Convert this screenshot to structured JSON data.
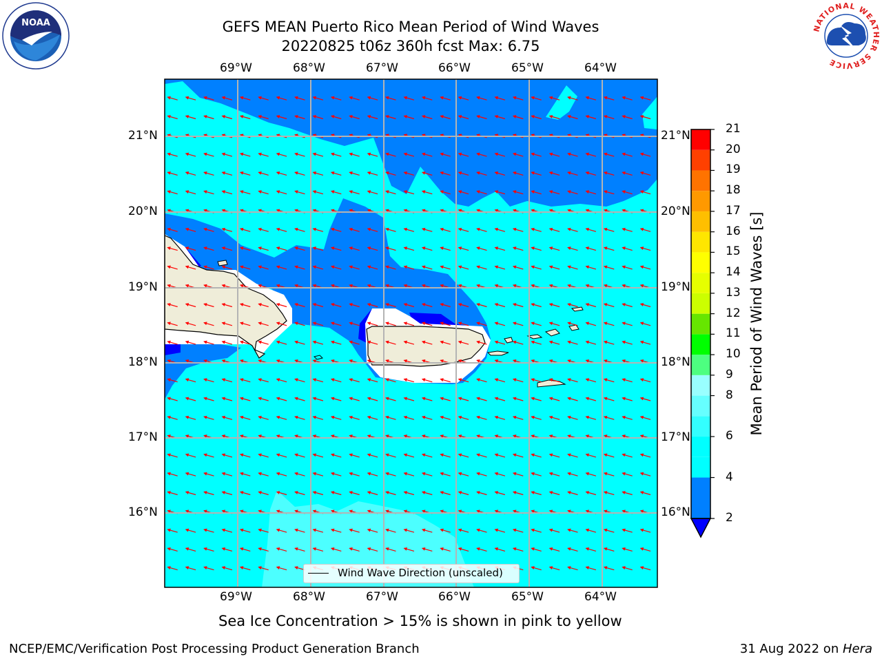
{
  "header": {
    "title_line1": "GEFS MEAN Puerto Rico Mean Period of Wind Waves",
    "title_line2": "20220825 t06z 360h fcst   Max: 6.75"
  },
  "logos": {
    "noaa": {
      "text": "NOAA",
      "ring_text": "NATIONAL OCEANIC AND ATMOSPHERIC ADMINISTRATION · U.S. DEPARTMENT OF COMMERCE"
    },
    "nws": {
      "ring_text": "NATIONAL WEATHER SERVICE"
    }
  },
  "map": {
    "lon_ticks": [
      "69°W",
      "68°W",
      "67°W",
      "66°W",
      "65°W",
      "64°W"
    ],
    "lat_ticks": [
      "21°N",
      "20°N",
      "19°N",
      "18°N",
      "17°N",
      "16°N"
    ],
    "extent": {
      "lon_min": -70.0,
      "lon_max": -63.25,
      "lat_min": 15.0,
      "lat_max": 21.75
    },
    "grid": true,
    "legend_label": "Wind Wave Direction (unscaled)",
    "arrow_color": "#ff0000",
    "land_color": "#efedd9",
    "colors": {
      "band_2_4": "#0080ff",
      "band_4_6": "#00ffff",
      "band_6_8": "#4cffff",
      "below_2": "#0000ff"
    }
  },
  "colorbar": {
    "label": "Mean Period of Wind Waves [s]",
    "ticks": [
      "21",
      "20",
      "19",
      "18",
      "17",
      "16",
      "15",
      "14",
      "13",
      "12",
      "11",
      "10",
      "9",
      "8",
      "6",
      "4",
      "2"
    ],
    "levels": [
      {
        "from": 2,
        "to": 4,
        "color": "#0080ff"
      },
      {
        "from": 4,
        "to": 5,
        "color": "#00ffff"
      },
      {
        "from": 5,
        "to": 6,
        "color": "#00ffff"
      },
      {
        "from": 6,
        "to": 7,
        "color": "#33ffff"
      },
      {
        "from": 7,
        "to": 8,
        "color": "#66ffff"
      },
      {
        "from": 8,
        "to": 9,
        "color": "#99ffff"
      },
      {
        "from": 9,
        "to": 10,
        "color": "#4dff80"
      },
      {
        "from": 10,
        "to": 11,
        "color": "#00ff00"
      },
      {
        "from": 11,
        "to": 12,
        "color": "#66e600"
      },
      {
        "from": 12,
        "to": 13,
        "color": "#ccff00"
      },
      {
        "from": 13,
        "to": 14,
        "color": "#e6ff00"
      },
      {
        "from": 14,
        "to": 15,
        "color": "#ffff00"
      },
      {
        "from": 15,
        "to": 16,
        "color": "#ffe600"
      },
      {
        "from": 16,
        "to": 17,
        "color": "#ffbf00"
      },
      {
        "from": 17,
        "to": 18,
        "color": "#ff9900"
      },
      {
        "from": 18,
        "to": 19,
        "color": "#ff7300"
      },
      {
        "from": 19,
        "to": 20,
        "color": "#ff4000"
      },
      {
        "from": 20,
        "to": 21,
        "color": "#ff0000"
      }
    ],
    "extend_color": "#0000ff"
  },
  "notes": {
    "sea_ice": "Sea Ice Concentration > 15% is shown in pink to yellow",
    "branch": "NCEP/EMC/Verification Post Processing Product Generation Branch",
    "date": "31 Aug 2022 on ",
    "machine": "Hera"
  }
}
